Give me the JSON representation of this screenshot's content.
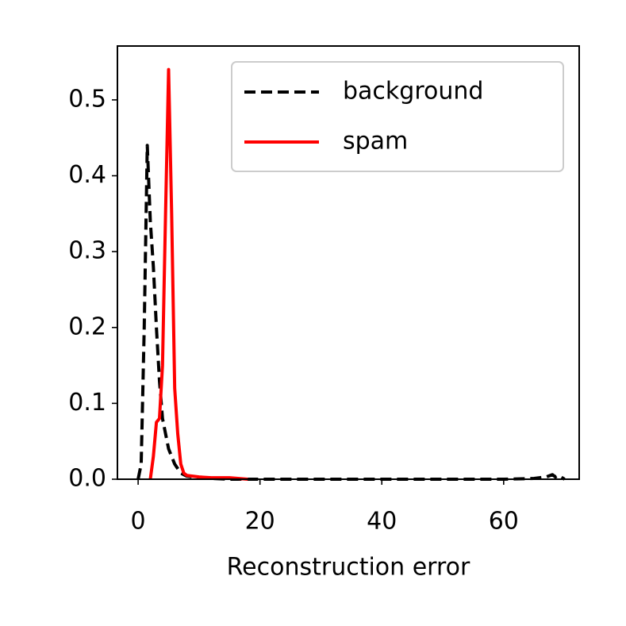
{
  "chart_data": {
    "type": "line",
    "xlabel": "Reconstruction error",
    "xlim": [
      -3.4,
      72.4
    ],
    "xticks": [
      0,
      20,
      40,
      60
    ],
    "ylim": [
      0,
      0.571
    ],
    "yticks": [
      {
        "value": 0,
        "label": "0.0"
      },
      0.1,
      0.2,
      0.3,
      0.4,
      0.5
    ],
    "legend": "upper right",
    "series": [
      {
        "name": "background",
        "color": "#000000",
        "linestyle": "dashed",
        "x": [
          0,
          0.5,
          1,
          1.5,
          2,
          2.5,
          3,
          3.5,
          4,
          5,
          6,
          7,
          8,
          10,
          12,
          15,
          20,
          30,
          40,
          50,
          60,
          65,
          67,
          68,
          68.5,
          69,
          70
        ],
        "values": [
          0,
          0.02,
          0.2,
          0.44,
          0.34,
          0.28,
          0.2,
          0.13,
          0.08,
          0.04,
          0.02,
          0.008,
          0.004,
          0.002,
          0.001,
          0,
          0,
          0,
          0,
          0,
          0,
          0.001,
          0.003,
          0.006,
          0.003,
          0.005,
          0
        ]
      },
      {
        "name": "spam",
        "color": "#ff0000",
        "linestyle": "solid",
        "x": [
          2,
          2.5,
          3,
          3.5,
          4,
          4.5,
          5,
          5.5,
          6,
          6.5,
          7,
          7.5,
          8,
          10,
          12,
          15,
          18
        ],
        "values": [
          0,
          0.03,
          0.075,
          0.08,
          0.15,
          0.35,
          0.54,
          0.35,
          0.12,
          0.06,
          0.02,
          0.008,
          0.005,
          0.003,
          0.002,
          0.002,
          0
        ]
      }
    ]
  }
}
